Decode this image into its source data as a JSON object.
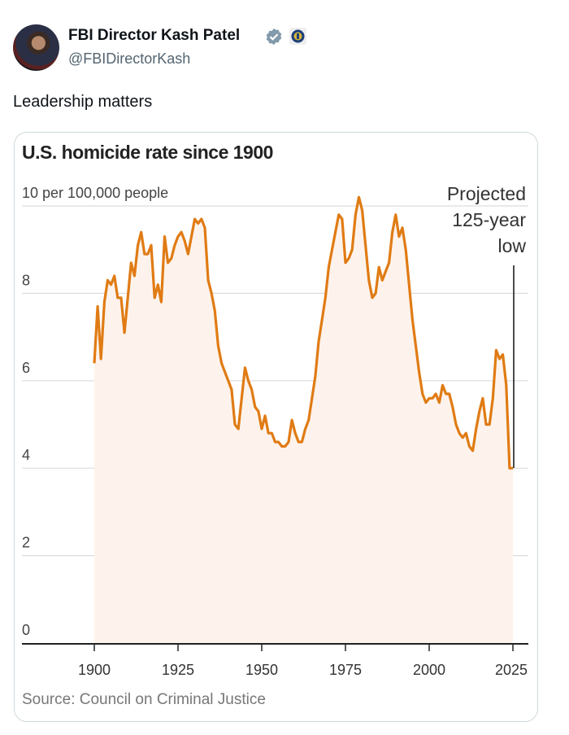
{
  "tweet": {
    "author_name": "FBI Director Kash Patel",
    "handle": "@FBIDirectorKash",
    "text": "Leadership matters",
    "verified_color": "#829aab"
  },
  "chart_data": {
    "type": "area",
    "title": "U.S. homicide rate since 1900",
    "ylabel": "per 100,000 people",
    "ytick_labels": [
      "0",
      "2",
      "4",
      "6",
      "8",
      "10 per 100,000 people"
    ],
    "yticks": [
      0,
      2,
      4,
      6,
      8,
      10
    ],
    "xticks": [
      1900,
      1925,
      1950,
      1975,
      2000,
      2025
    ],
    "xtick_labels": [
      "1900",
      "1925",
      "1950",
      "1975",
      "2000",
      "2025"
    ],
    "xlim": [
      1878,
      2030
    ],
    "ylim": [
      0,
      10.5
    ],
    "grid": true,
    "annotation": {
      "lines": [
        "Projected",
        "125-year",
        "low"
      ],
      "year": 2025
    },
    "source": "Source: Council on Criminal Justice",
    "line_color": "#e07b14",
    "fill_color": "#fdf3ec",
    "x": [
      1900,
      1901,
      1902,
      1903,
      1904,
      1905,
      1906,
      1907,
      1908,
      1909,
      1910,
      1911,
      1912,
      1913,
      1914,
      1915,
      1916,
      1917,
      1918,
      1919,
      1920,
      1921,
      1922,
      1923,
      1924,
      1925,
      1926,
      1927,
      1928,
      1929,
      1930,
      1931,
      1932,
      1933,
      1934,
      1935,
      1936,
      1937,
      1938,
      1939,
      1940,
      1941,
      1942,
      1943,
      1944,
      1945,
      1946,
      1947,
      1948,
      1949,
      1950,
      1951,
      1952,
      1953,
      1954,
      1955,
      1956,
      1957,
      1958,
      1959,
      1960,
      1961,
      1962,
      1963,
      1964,
      1965,
      1966,
      1967,
      1968,
      1969,
      1970,
      1971,
      1972,
      1973,
      1974,
      1975,
      1976,
      1977,
      1978,
      1979,
      1980,
      1981,
      1982,
      1983,
      1984,
      1985,
      1986,
      1987,
      1988,
      1989,
      1990,
      1991,
      1992,
      1993,
      1994,
      1995,
      1996,
      1997,
      1998,
      1999,
      2000,
      2001,
      2002,
      2003,
      2004,
      2005,
      2006,
      2007,
      2008,
      2009,
      2010,
      2011,
      2012,
      2013,
      2014,
      2015,
      2016,
      2017,
      2018,
      2019,
      2020,
      2021,
      2022,
      2023,
      2024,
      2025
    ],
    "values": [
      6.4,
      7.7,
      6.5,
      7.8,
      8.3,
      8.2,
      8.4,
      7.9,
      7.9,
      7.1,
      7.9,
      8.7,
      8.4,
      9.1,
      9.4,
      8.9,
      8.9,
      9.1,
      7.9,
      8.2,
      7.8,
      9.3,
      8.7,
      8.8,
      9.1,
      9.3,
      9.4,
      9.2,
      8.9,
      9.3,
      9.7,
      9.6,
      9.7,
      9.5,
      8.3,
      8.0,
      7.6,
      6.8,
      6.4,
      6.2,
      6.0,
      5.8,
      5.0,
      4.9,
      5.6,
      6.3,
      6.0,
      5.8,
      5.4,
      5.3,
      4.9,
      5.2,
      4.8,
      4.8,
      4.6,
      4.6,
      4.5,
      4.5,
      4.6,
      5.1,
      4.8,
      4.6,
      4.6,
      4.9,
      5.1,
      5.6,
      6.1,
      6.9,
      7.4,
      7.9,
      8.6,
      9.0,
      9.4,
      9.8,
      9.7,
      8.7,
      8.8,
      9.0,
      9.8,
      10.2,
      9.9,
      9.1,
      8.3,
      7.9,
      8.0,
      8.6,
      8.3,
      8.5,
      8.7,
      9.4,
      9.8,
      9.3,
      9.5,
      9.0,
      8.2,
      7.4,
      6.8,
      6.2,
      5.7,
      5.5,
      5.6,
      5.6,
      5.7,
      5.5,
      5.9,
      5.7,
      5.7,
      5.4,
      5.0,
      4.8,
      4.7,
      4.8,
      4.5,
      4.4,
      4.9,
      5.3,
      5.6,
      5.0,
      5.0,
      5.6,
      6.7,
      6.5,
      6.6,
      5.9,
      4.0,
      4.0
    ]
  }
}
